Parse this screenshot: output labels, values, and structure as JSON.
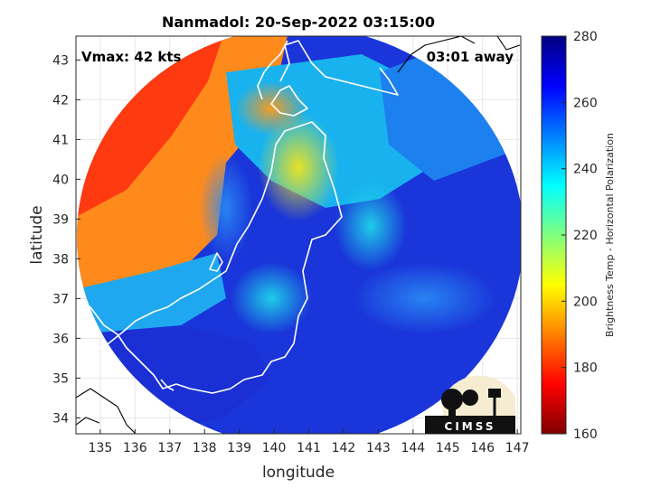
{
  "chart_data": {
    "type": "heatmap",
    "title": "Nanmadol: 20-Sep-2022 03:15:00",
    "xlabel": "longitude",
    "ylabel": "latitude",
    "xlim": [
      134.3,
      147.1
    ],
    "ylim": [
      33.6,
      43.6
    ],
    "x_ticks": [
      "135",
      "136",
      "137",
      "138",
      "139",
      "140",
      "141",
      "142",
      "143",
      "144",
      "145",
      "146",
      "147"
    ],
    "y_ticks": [
      "34",
      "35",
      "36",
      "37",
      "38",
      "39",
      "40",
      "41",
      "42",
      "43"
    ],
    "grid": true,
    "annotations": {
      "vmax": "Vmax: 42 kts",
      "time_away": "03:01 away"
    },
    "colorbar": {
      "label": "Brightness Temp - Horizontal Polarization",
      "min": 160,
      "max": 280,
      "ticks": [
        "160",
        "180",
        "200",
        "220",
        "240",
        "260",
        "280"
      ],
      "colormap": "jet"
    },
    "logo_text": "CIMSS"
  }
}
